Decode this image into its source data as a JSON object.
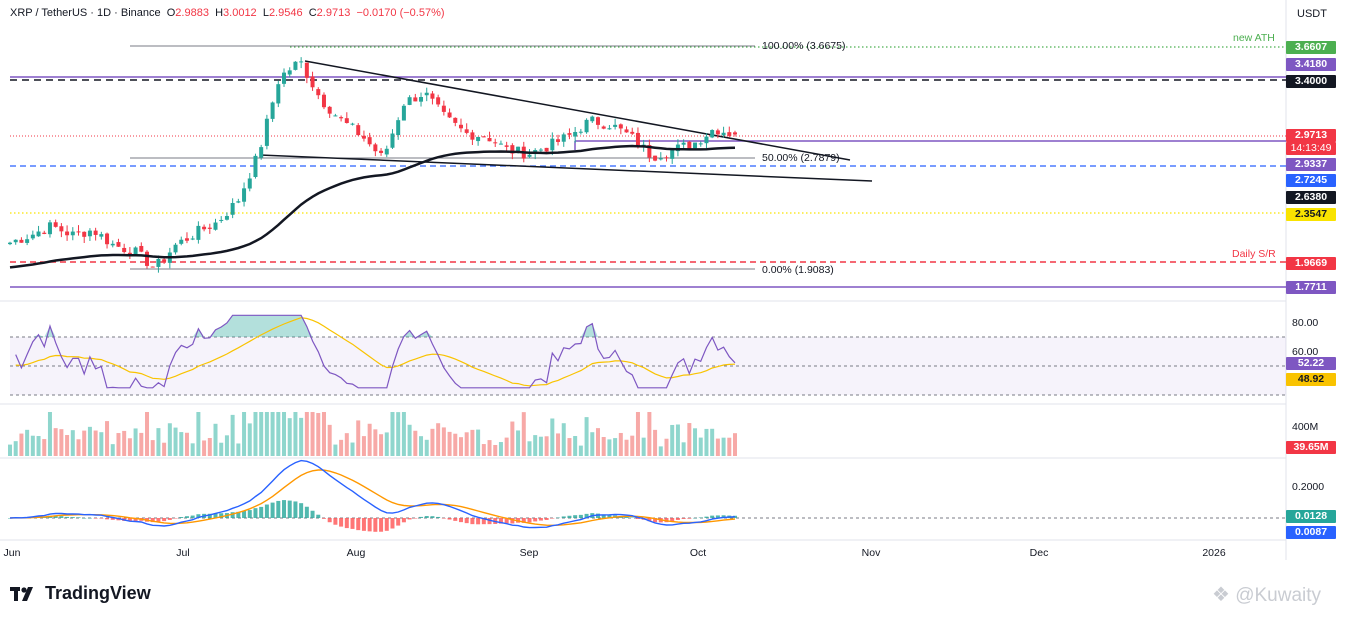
{
  "header": {
    "symbol": "XRP / TetherUS · 1D · Binance",
    "o_label": "O",
    "o_value": "2.9883",
    "h_label": "H",
    "h_value": "3.0012",
    "l_label": "L",
    "l_value": "2.9546",
    "c_label": "C",
    "c_value": "2.9713",
    "change": "−0.0170 (−0.57%)"
  },
  "quote_currency": "USDT",
  "colors": {
    "up": "#26a69a",
    "down": "#f23645",
    "purple": "#7e57c2",
    "blue": "#2962ff",
    "green": "#4caf50",
    "yellow": "#f9e300",
    "ema": "#131722"
  },
  "price_labels": [
    {
      "text": "3.6607",
      "color": "#4caf50"
    },
    {
      "text": "3.4180",
      "color": "#7e57c2"
    },
    {
      "text": "3.4000",
      "color": "#131722"
    },
    {
      "text": "2.9713",
      "color": "#f23645"
    },
    {
      "text": "14:13:49",
      "color": "#f23645"
    },
    {
      "text": "2.9337",
      "color": "#7e57c2"
    },
    {
      "text": "2.7245",
      "color": "#2962ff"
    },
    {
      "text": "2.6380",
      "color": "#131722"
    },
    {
      "text": "2.3547",
      "color": "#f9e300"
    },
    {
      "text": "1.9669",
      "color": "#f23645"
    },
    {
      "text": "1.7711",
      "color": "#7e57c2"
    }
  ],
  "annotations": {
    "new_ath": "new ATH",
    "daily_sr": "Daily S/R",
    "fib_100": "100.00% (3.6675)",
    "fib_50": "50.00% (2.7879)",
    "fib_0": "0.00% (1.9083)"
  },
  "rsi_panel": {
    "axis_labels": [
      "80.00",
      "60.00"
    ],
    "rsi_value": "52.22",
    "rsi_ma_value": "48.92"
  },
  "volume_panel": {
    "axis_label": "400M",
    "value": "39.65M"
  },
  "macd_panel": {
    "axis_label": "0.2000",
    "macd_value": "0.0128",
    "signal_value": "0.0087"
  },
  "time_axis": [
    "Jun",
    "Jul",
    "Aug",
    "Sep",
    "Oct",
    "Nov",
    "Dec",
    "2026"
  ],
  "branding": {
    "logo": "TradingView",
    "watermark": "@Kuwaity"
  },
  "chart_data": {
    "type": "candlestick",
    "symbol": "XRP / TetherUS",
    "interval": "1D",
    "y_range": [
      1.7,
      3.85
    ],
    "key_levels": [
      {
        "value": 3.6607,
        "label": "new ATH"
      },
      {
        "value": 3.418
      },
      {
        "value": 3.4
      },
      {
        "value": 2.9713
      },
      {
        "value": 2.9337
      },
      {
        "value": 2.7245
      },
      {
        "value": 2.638
      },
      {
        "value": 2.3547
      },
      {
        "value": 1.9669,
        "label": "Daily S/R"
      },
      {
        "value": 1.7711
      }
    ],
    "fibonacci": [
      {
        "level": "100.00%",
        "price": 3.6675
      },
      {
        "level": "50.00%",
        "price": 2.7879
      },
      {
        "level": "0.00%",
        "price": 1.9083
      }
    ],
    "last": {
      "open": 2.9883,
      "high": 3.0012,
      "low": 2.9546,
      "close": 2.9713,
      "change": -0.017,
      "change_pct": -0.57
    },
    "anchors": [
      {
        "x": "Jun",
        "close": 2.12
      },
      {
        "x": "Jun",
        "close": 2.18
      },
      {
        "x": "Jun",
        "close": 2.25
      },
      {
        "x": "Jun",
        "close": 2.18
      },
      {
        "x": "Jun",
        "close": 2.22
      },
      {
        "x": "Jun",
        "close": 2.1
      },
      {
        "x": "Jun",
        "close": 2.05
      },
      {
        "x": "Jun",
        "close": 1.92
      },
      {
        "x": "Jun",
        "close": 2.1
      },
      {
        "x": "Jul",
        "close": 2.2
      },
      {
        "x": "Jul",
        "close": 2.28
      },
      {
        "x": "Jul",
        "close": 2.45
      },
      {
        "x": "Jul",
        "close": 2.82
      },
      {
        "x": "Jul",
        "close": 3.42
      },
      {
        "x": "Jul",
        "close": 3.55
      },
      {
        "x": "Jul",
        "close": 3.25
      },
      {
        "x": "Aug",
        "close": 3.08
      },
      {
        "x": "Aug",
        "close": 2.96
      },
      {
        "x": "Aug",
        "close": 2.78
      },
      {
        "x": "Aug",
        "close": 3.22
      },
      {
        "x": "Aug",
        "close": 3.3
      },
      {
        "x": "Aug",
        "close": 3.1
      },
      {
        "x": "Aug",
        "close": 2.98
      },
      {
        "x": "Aug",
        "close": 2.96
      },
      {
        "x": "Aug",
        "close": 2.85
      },
      {
        "x": "Sep",
        "close": 2.82
      },
      {
        "x": "Sep",
        "close": 2.88
      },
      {
        "x": "Sep",
        "close": 2.96
      },
      {
        "x": "Sep",
        "close": 3.08
      },
      {
        "x": "Sep",
        "close": 3.05
      },
      {
        "x": "Sep",
        "close": 2.95
      },
      {
        "x": "Sep",
        "close": 2.8
      },
      {
        "x": "Sep",
        "close": 2.85
      },
      {
        "x": "Oct",
        "close": 2.9
      },
      {
        "x": "Oct",
        "close": 3.02
      },
      {
        "x": "Oct",
        "close": 2.9713
      }
    ]
  }
}
